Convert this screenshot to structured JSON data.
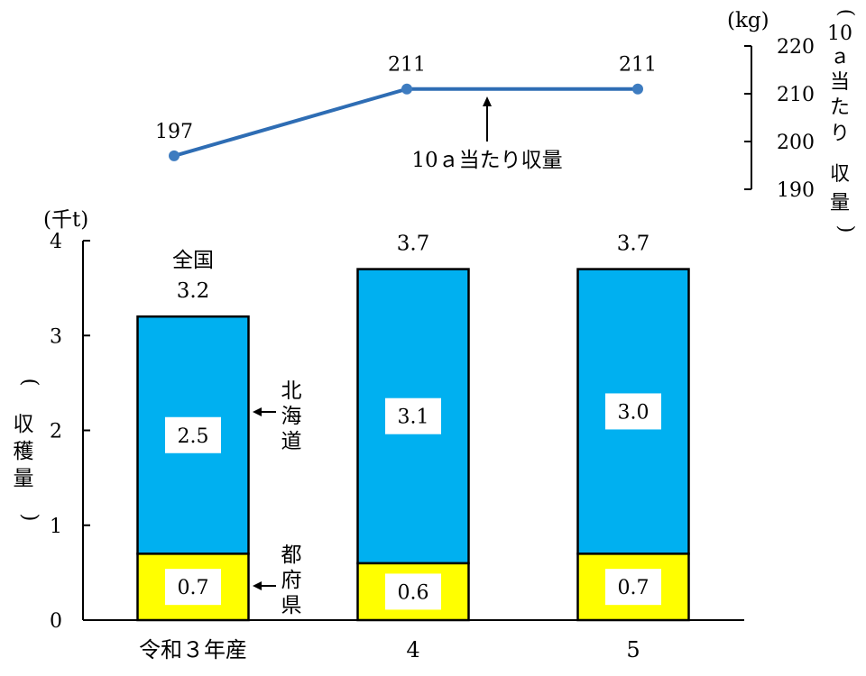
{
  "chart_data": [
    {
      "type": "line",
      "series": [
        {
          "name": "10ａ当たり収量",
          "values": [
            197,
            211,
            211
          ],
          "data_labels": [
            "197",
            "211",
            "211"
          ]
        }
      ],
      "annotation": "10ａ当たり収量",
      "y_axis": {
        "unit": "(kg)",
        "label": "10ａ当たり収量",
        "ticks": [
          "220",
          "210",
          "200",
          "190"
        ],
        "ylim": [
          190,
          220
        ],
        "position": "right"
      },
      "colors": {
        "line": "#2E6DB4",
        "marker": "#3E7CC0"
      }
    },
    {
      "type": "bar",
      "stacked": true,
      "categories": [
        "令和３年産",
        "4",
        "5"
      ],
      "series": [
        {
          "name": "都府県",
          "values": [
            0.7,
            0.6,
            0.7
          ],
          "labels": [
            "0.7",
            "0.6",
            "0.7"
          ],
          "color": "#FFFF00"
        },
        {
          "name": "北海道",
          "values": [
            2.5,
            3.1,
            3.0
          ],
          "labels": [
            "2.5",
            "3.1",
            "3.0"
          ],
          "color": "#00B0F0"
        }
      ],
      "totals": [
        3.2,
        3.7,
        3.7
      ],
      "total_labels": [
        "3.2",
        "3.7",
        "3.7"
      ],
      "total_prefix": "全国",
      "y_axis": {
        "unit": "(千t)",
        "label": "収穫量",
        "ticks": [
          "4",
          "3",
          "2",
          "1",
          "0"
        ],
        "ylim": [
          0,
          4
        ],
        "position": "left"
      },
      "series_labels": {
        "hokkaido": [
          "北",
          "海",
          "道"
        ],
        "prefectures": [
          "都",
          "府",
          "県"
        ]
      }
    }
  ]
}
